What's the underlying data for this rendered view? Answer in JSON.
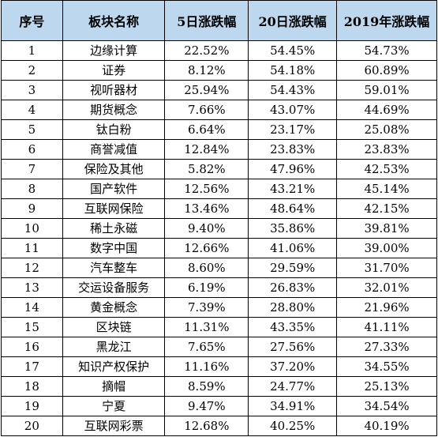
{
  "table": {
    "headers": [
      "序号",
      "板块名称",
      "5日涨跌幅",
      "20日涨跌幅",
      "2019年涨跌幅"
    ],
    "header_bg": "#bdd7ee",
    "rows": [
      [
        "1",
        "边缘计算",
        "22.52%",
        "54.45%",
        "54.73%"
      ],
      [
        "2",
        "证券",
        "8.12%",
        "54.18%",
        "60.89%"
      ],
      [
        "3",
        "视听器材",
        "25.94%",
        "54.43%",
        "59.01%"
      ],
      [
        "4",
        "期货概念",
        "7.66%",
        "43.07%",
        "44.69%"
      ],
      [
        "5",
        "钛白粉",
        "6.64%",
        "23.17%",
        "25.08%"
      ],
      [
        "6",
        "商誉减值",
        "12.84%",
        "23.83%",
        "23.83%"
      ],
      [
        "7",
        "保险及其他",
        "5.82%",
        "47.96%",
        "42.53%"
      ],
      [
        "8",
        "国产软件",
        "12.56%",
        "43.21%",
        "45.14%"
      ],
      [
        "9",
        "互联网保险",
        "13.46%",
        "48.64%",
        "42.15%"
      ],
      [
        "10",
        "稀土永磁",
        "9.40%",
        "35.86%",
        "39.81%"
      ],
      [
        "11",
        "数字中国",
        "12.66%",
        "41.06%",
        "39.00%"
      ],
      [
        "12",
        "汽车整车",
        "8.60%",
        "29.59%",
        "31.70%"
      ],
      [
        "13",
        "交运设备服务",
        "6.19%",
        "26.83%",
        "32.01%"
      ],
      [
        "14",
        "黄金概念",
        "7.39%",
        "28.80%",
        "21.96%"
      ],
      [
        "15",
        "区块链",
        "11.31%",
        "43.35%",
        "41.11%"
      ],
      [
        "16",
        "黑龙江",
        "7.65%",
        "27.56%",
        "27.33%"
      ],
      [
        "17",
        "知识产权保护",
        "11.16%",
        "37.20%",
        "34.55%"
      ],
      [
        "18",
        "摘帽",
        "8.59%",
        "24.77%",
        "25.13%"
      ],
      [
        "19",
        "宁夏",
        "9.47%",
        "34.91%",
        "34.54%"
      ],
      [
        "20",
        "互联网彩票",
        "12.68%",
        "40.25%",
        "40.19%"
      ]
    ]
  }
}
